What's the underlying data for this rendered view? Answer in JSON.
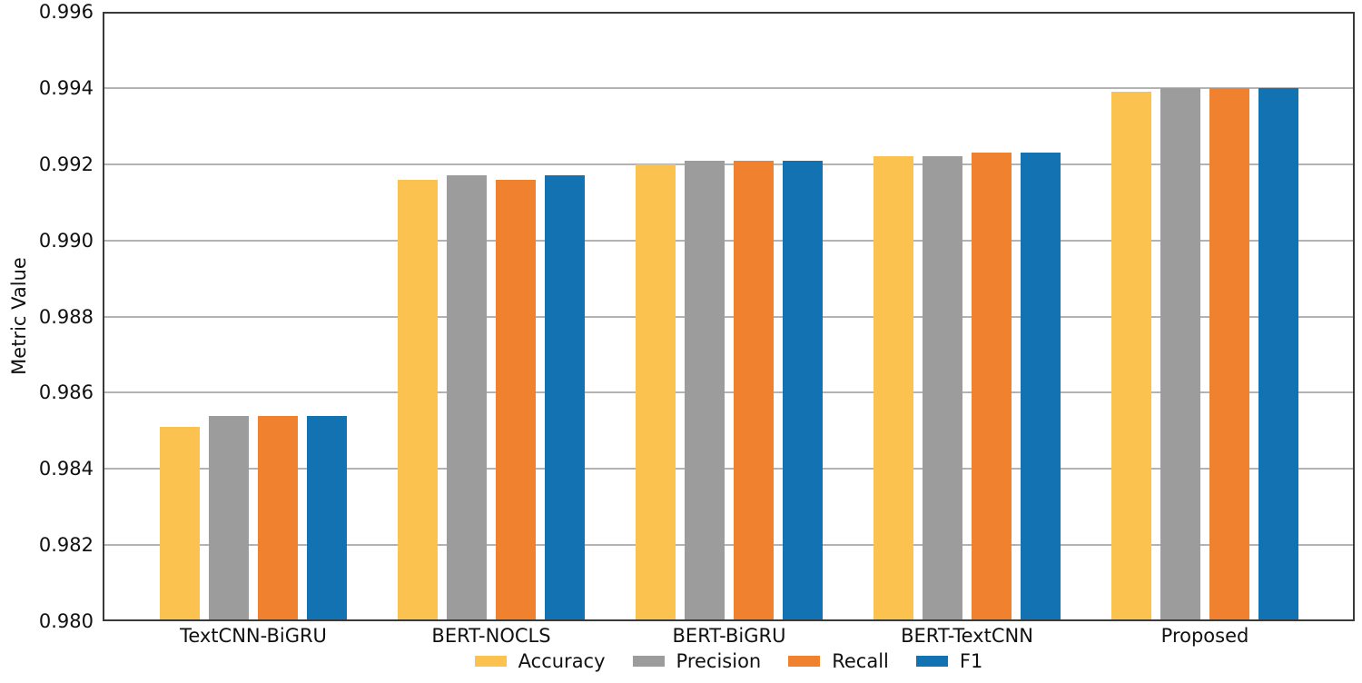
{
  "chart_data": {
    "type": "bar",
    "title": "",
    "xlabel": "",
    "ylabel": "Metric Value",
    "ylim": [
      0.98,
      0.996
    ],
    "ytick_step": 0.002,
    "ytick_labels": [
      "0.980",
      "0.982",
      "0.984",
      "0.986",
      "0.988",
      "0.990",
      "0.992",
      "0.994",
      "0.996"
    ],
    "grid": true,
    "legend_position": "bottom",
    "categories": [
      "TextCNN-BiGRU",
      "BERT-NOCLS",
      "BERT-BiGRU",
      "BERT-TextCNN",
      "Proposed"
    ],
    "series": [
      {
        "name": "Accuracy",
        "color": "#fcc24f",
        "values": [
          0.9851,
          0.9916,
          0.992,
          0.9922,
          0.9939
        ]
      },
      {
        "name": "Precision",
        "color": "#9c9c9c",
        "values": [
          0.9854,
          0.9917,
          0.9921,
          0.9922,
          0.994
        ]
      },
      {
        "name": "Recall",
        "color": "#f0812f",
        "values": [
          0.9854,
          0.9916,
          0.9921,
          0.9923,
          0.994
        ]
      },
      {
        "name": "F1",
        "color": "#1372b2",
        "values": [
          0.9854,
          0.9917,
          0.9921,
          0.9923,
          0.994
        ]
      }
    ]
  },
  "styles": {
    "axis_color": "#3a3a3a",
    "grid_color": "#b3b3b3",
    "text_color": "#111111",
    "background": "#ffffff"
  }
}
